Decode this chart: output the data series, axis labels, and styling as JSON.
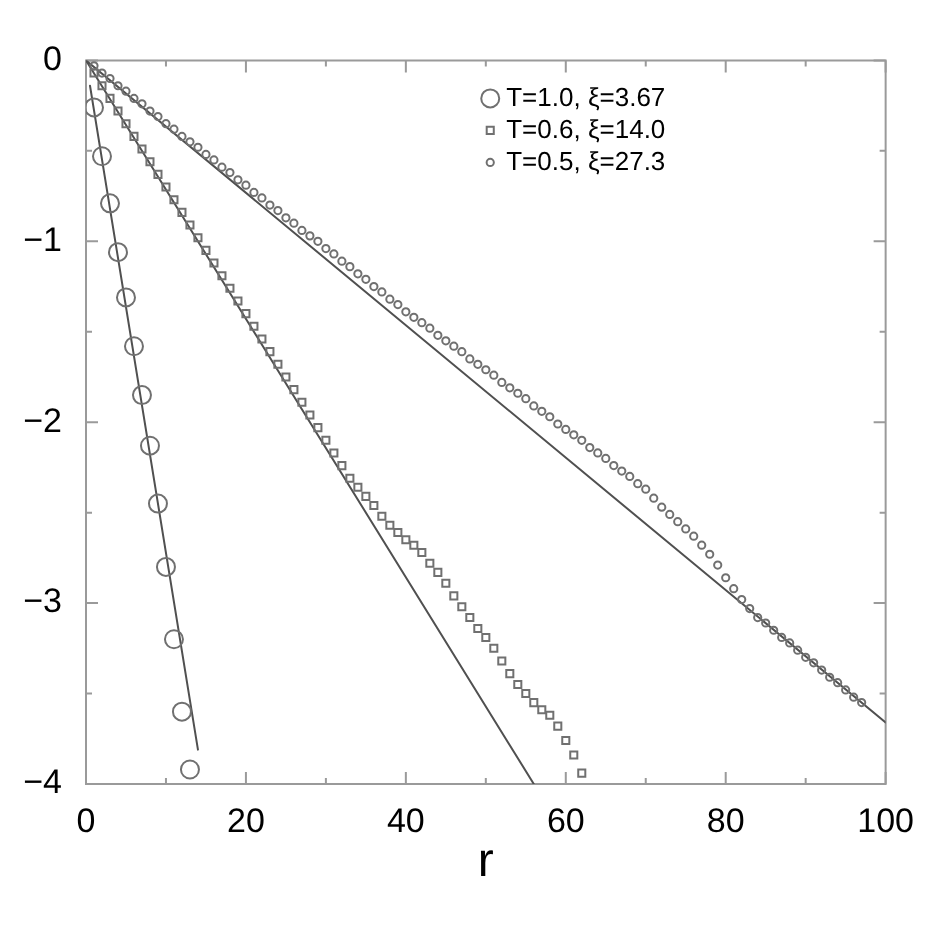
{
  "chart_data": {
    "type": "scatter",
    "xlabel": "r",
    "legend": "top",
    "xlim": [
      0,
      100
    ],
    "xticks": [
      0,
      {
        "value": 10,
        "label": null
      },
      20,
      {
        "value": 30,
        "label": null
      },
      40,
      {
        "value": 50,
        "label": null
      },
      60,
      {
        "value": 70,
        "label": null
      },
      80,
      {
        "value": 90,
        "label": null
      },
      100
    ],
    "ylim": [
      -4,
      0
    ],
    "yticks": [
      {
        "value": -4,
        "label": "−4"
      },
      {
        "value": -3.5,
        "label": null
      },
      {
        "value": -3,
        "label": "−3"
      },
      {
        "value": -2.5,
        "label": null
      },
      {
        "value": -2,
        "label": "−2"
      },
      {
        "value": -1.5,
        "label": null
      },
      {
        "value": -1,
        "label": "−1"
      },
      {
        "value": -0.5,
        "label": null
      },
      0
    ],
    "series": [
      {
        "name": "T=1.0, ξ=3.67",
        "marker": "circle",
        "color": "#707070",
        "x": [
          1,
          2,
          3,
          4,
          5,
          6,
          7,
          8,
          9,
          10,
          11,
          12,
          13
        ],
        "values": [
          -0.26,
          -0.53,
          -0.79,
          -1.06,
          -1.31,
          -1.58,
          -1.85,
          -2.13,
          -2.45,
          -2.8,
          -3.2,
          -3.6,
          -3.92
        ]
      },
      {
        "name": "T=0.6, ξ=14.0",
        "marker": "square",
        "color": "#707070",
        "x": [
          1,
          2,
          3,
          4,
          5,
          6,
          7,
          8,
          9,
          10,
          11,
          12,
          13,
          14,
          15,
          16,
          17,
          18,
          19,
          20,
          21,
          22,
          23,
          24,
          25,
          26,
          27,
          28,
          29,
          30,
          31,
          32,
          33,
          34,
          35,
          36,
          37,
          38,
          39,
          40,
          41,
          42,
          43,
          44,
          45,
          46,
          47,
          48,
          49,
          50,
          51,
          52,
          53,
          54,
          55,
          56,
          57,
          58,
          59,
          60,
          61,
          62
        ],
        "values": [
          -0.07,
          -0.14,
          -0.21,
          -0.28,
          -0.35,
          -0.42,
          -0.49,
          -0.56,
          -0.63,
          -0.7,
          -0.77,
          -0.84,
          -0.91,
          -0.98,
          -1.05,
          -1.12,
          -1.19,
          -1.26,
          -1.33,
          -1.4,
          -1.47,
          -1.54,
          -1.61,
          -1.68,
          -1.75,
          -1.82,
          -1.89,
          -1.96,
          -2.03,
          -2.1,
          -2.17,
          -2.24,
          -2.31,
          -2.36,
          -2.41,
          -2.46,
          -2.52,
          -2.57,
          -2.61,
          -2.65,
          -2.68,
          -2.72,
          -2.78,
          -2.83,
          -2.89,
          -2.96,
          -3.02,
          -3.08,
          -3.14,
          -3.19,
          -3.25,
          -3.32,
          -3.39,
          -3.45,
          -3.5,
          -3.55,
          -3.59,
          -3.62,
          -3.68,
          -3.76,
          -3.84,
          -3.94
        ]
      },
      {
        "name": "T=0.5, ξ=27.3",
        "marker": "circle",
        "color": "#707070",
        "x": [
          1,
          2,
          3,
          4,
          5,
          6,
          7,
          8,
          9,
          10,
          11,
          12,
          13,
          14,
          15,
          16,
          17,
          18,
          19,
          20,
          21,
          22,
          23,
          24,
          25,
          26,
          27,
          28,
          29,
          30,
          31,
          32,
          33,
          34,
          35,
          36,
          37,
          38,
          39,
          40,
          41,
          42,
          43,
          44,
          45,
          46,
          47,
          48,
          49,
          50,
          51,
          52,
          53,
          54,
          55,
          56,
          57,
          58,
          59,
          60,
          61,
          62,
          63,
          64,
          65,
          66,
          67,
          68,
          69,
          70,
          71,
          72,
          73,
          74,
          75,
          76,
          77,
          78,
          79,
          80,
          81,
          82,
          83,
          84,
          85,
          86,
          87,
          88,
          89,
          90,
          91,
          92,
          93,
          94,
          95,
          96,
          97
        ],
        "values": [
          -0.03,
          -0.07,
          -0.1,
          -0.14,
          -0.17,
          -0.21,
          -0.24,
          -0.28,
          -0.31,
          -0.35,
          -0.38,
          -0.42,
          -0.45,
          -0.48,
          -0.52,
          -0.55,
          -0.59,
          -0.62,
          -0.66,
          -0.69,
          -0.73,
          -0.76,
          -0.8,
          -0.83,
          -0.87,
          -0.9,
          -0.94,
          -0.97,
          -1.0,
          -1.04,
          -1.07,
          -1.11,
          -1.14,
          -1.18,
          -1.21,
          -1.25,
          -1.28,
          -1.32,
          -1.35,
          -1.39,
          -1.42,
          -1.45,
          -1.48,
          -1.52,
          -1.55,
          -1.58,
          -1.61,
          -1.65,
          -1.68,
          -1.71,
          -1.74,
          -1.78,
          -1.81,
          -1.84,
          -1.87,
          -1.91,
          -1.94,
          -1.97,
          -2.01,
          -2.04,
          -2.07,
          -2.1,
          -2.14,
          -2.17,
          -2.2,
          -2.24,
          -2.27,
          -2.3,
          -2.34,
          -2.37,
          -2.42,
          -2.47,
          -2.51,
          -2.55,
          -2.59,
          -2.63,
          -2.68,
          -2.73,
          -2.79,
          -2.86,
          -2.92,
          -2.98,
          -3.03,
          -3.08,
          -3.11,
          -3.15,
          -3.19,
          -3.22,
          -3.26,
          -3.3,
          -3.33,
          -3.37,
          -3.41,
          -3.44,
          -3.48,
          -3.52,
          -3.55
        ]
      },
      {
        "type": "line",
        "marker": "none",
        "color": "#505050",
        "x": [
          0.5,
          14
        ],
        "values": [
          -0.14,
          -3.81
        ]
      },
      {
        "type": "line",
        "marker": "none",
        "color": "#505050",
        "x": [
          0,
          56
        ],
        "values": [
          0,
          -4
        ]
      },
      {
        "type": "line",
        "marker": "none",
        "color": "#505050",
        "x": [
          0,
          100
        ],
        "values": [
          0,
          -3.66
        ]
      }
    ]
  }
}
